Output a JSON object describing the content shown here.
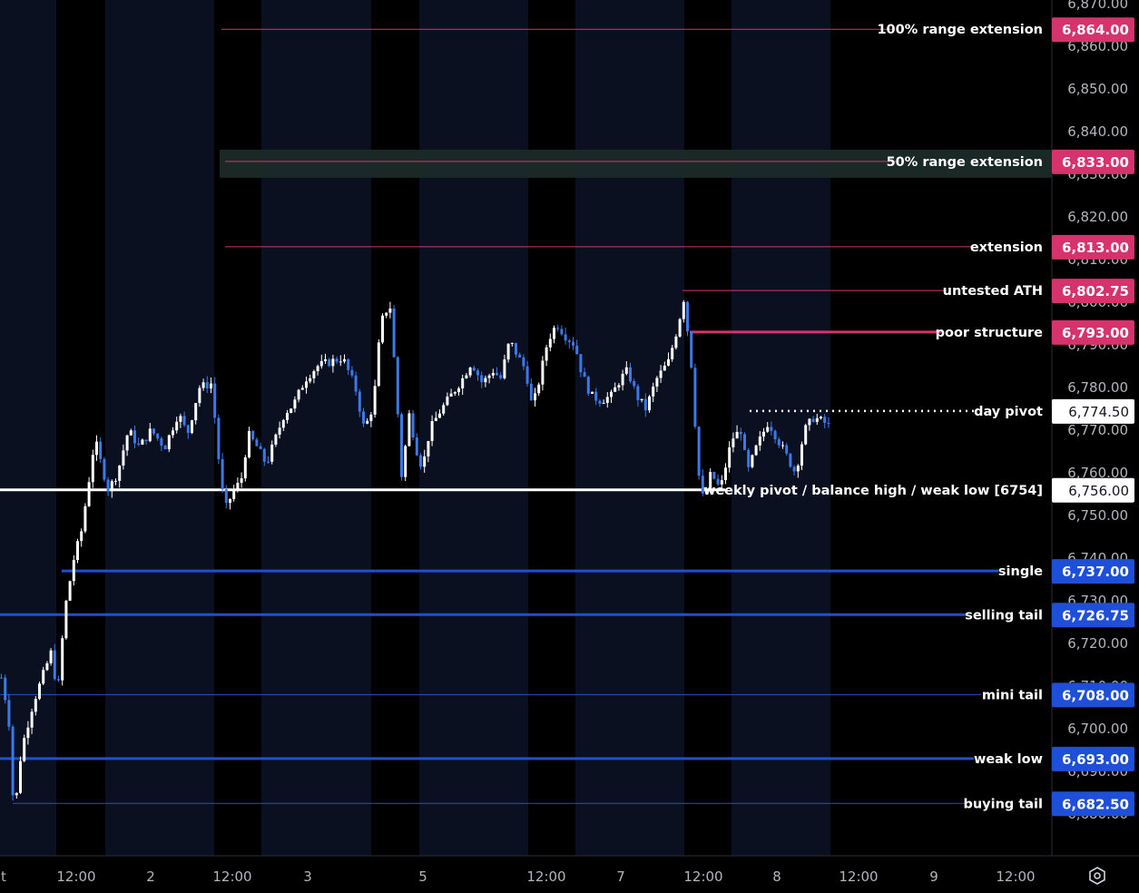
{
  "chart_data": {
    "type": "candlestick",
    "y_axis": {
      "min": 6667,
      "max": 6870,
      "ticks": [
        6680,
        6690,
        6700,
        6710,
        6720,
        6730,
        6740,
        6750,
        6760,
        6770,
        6780,
        6790,
        6800,
        6810,
        6820,
        6830,
        6840,
        6850,
        6860,
        6870
      ],
      "tick_labels": [
        "6,680.00",
        "6,690.00",
        "6,700.00",
        "6,710.00",
        "6,720.00",
        "6,730.00",
        "6,740.00",
        "6,750.00",
        "6,760.00",
        "6,770.00",
        "6,780.00",
        "6,790.00",
        "6,800.00",
        "6,810.00",
        "6,820.00",
        "6,830.00",
        "6,840.00",
        "6,850.00",
        "6,860.00",
        "6,870.00"
      ]
    },
    "x_axis": {
      "labels": [
        "t",
        "12:00",
        "2",
        "12:00",
        "3",
        "5",
        "12:00",
        "7",
        "12:00",
        "8",
        "12:00",
        "9",
        "12:00"
      ]
    },
    "levels": [
      {
        "label": "100% range extension",
        "price": 6864.0,
        "price_label": "6,864.00",
        "color": "#d6336c",
        "style": "thin"
      },
      {
        "label": "50% range extension",
        "price": 6833.0,
        "price_label": "6,833.00",
        "color": "#d6336c",
        "style": "zone"
      },
      {
        "label": "extension",
        "price": 6813.0,
        "price_label": "6,813.00",
        "color": "#d6336c",
        "style": "thin"
      },
      {
        "label": "untested ATH",
        "price": 6802.75,
        "price_label": "6,802.75",
        "color": "#d6336c",
        "style": "thin"
      },
      {
        "label": "poor structure",
        "price": 6793.0,
        "price_label": "6,793.00",
        "color": "#d6336c",
        "style": "thick"
      },
      {
        "label": "day pivot",
        "price": 6774.5,
        "price_label": "6,774.50",
        "color": "#ffffff",
        "style": "dotted"
      },
      {
        "label": "weekly pivot / balance high / weak low [6754]",
        "price": 6756.0,
        "price_label": "6,756.00",
        "color": "#ffffff",
        "style": "thick"
      },
      {
        "label": "single",
        "price": 6737.0,
        "price_label": "6,737.00",
        "color": "#1e4fd8",
        "style": "thick"
      },
      {
        "label": "selling tail",
        "price": 6726.75,
        "price_label": "6,726.75",
        "color": "#1e4fd8",
        "style": "thick"
      },
      {
        "label": "mini tail",
        "price": 6708.0,
        "price_label": "6,708.00",
        "color": "#1e4fd8",
        "style": "thin"
      },
      {
        "label": "weak low",
        "price": 6693.0,
        "price_label": "6,693.00",
        "color": "#1e4fd8",
        "style": "thick"
      },
      {
        "label": "buying tail",
        "price": 6682.5,
        "price_label": "6,682.50",
        "color": "#1e4fd8",
        "style": "thin"
      }
    ],
    "series_path": [
      [
        6712,
        0
      ],
      [
        6703,
        8
      ],
      [
        6679,
        14
      ],
      [
        6695,
        22
      ],
      [
        6706,
        35
      ],
      [
        6712,
        45
      ],
      [
        6718,
        55
      ],
      [
        6708,
        62
      ],
      [
        6728,
        70
      ],
      [
        6740,
        80
      ],
      [
        6746,
        88
      ],
      [
        6756,
        95
      ],
      [
        6768,
        103
      ],
      [
        6762,
        110
      ],
      [
        6756,
        118
      ],
      [
        6760,
        128
      ],
      [
        6770,
        140
      ],
      [
        6766,
        152
      ],
      [
        6770,
        165
      ],
      [
        6766,
        180
      ],
      [
        6774,
        195
      ],
      [
        6769,
        205
      ],
      [
        6780,
        218
      ],
      [
        6781,
        232
      ],
      [
        6766,
        238
      ],
      [
        6751,
        246
      ],
      [
        6756,
        256
      ],
      [
        6758,
        264
      ],
      [
        6769,
        272
      ],
      [
        6766,
        282
      ],
      [
        6762,
        292
      ],
      [
        6768,
        302
      ],
      [
        6774,
        312
      ],
      [
        6776,
        322
      ],
      [
        6782,
        335
      ],
      [
        6785,
        348
      ],
      [
        6786,
        362
      ],
      [
        6787,
        376
      ],
      [
        6780,
        390
      ],
      [
        6770,
        400
      ],
      [
        6776,
        410
      ],
      [
        6795,
        418
      ],
      [
        6800,
        428
      ],
      [
        6780,
        435
      ],
      [
        6756,
        442
      ],
      [
        6775,
        448
      ],
      [
        6765,
        458
      ],
      [
        6761,
        464
      ],
      [
        6770,
        472
      ],
      [
        6774,
        482
      ],
      [
        6778,
        495
      ],
      [
        6782,
        508
      ],
      [
        6786,
        518
      ],
      [
        6781,
        530
      ],
      [
        6784,
        542
      ],
      [
        6782,
        550
      ],
      [
        6791,
        560
      ],
      [
        6787,
        570
      ],
      [
        6784,
        578
      ],
      [
        6775,
        585
      ],
      [
        6782,
        593
      ],
      [
        6791,
        602
      ],
      [
        6795,
        612
      ],
      [
        6792,
        622
      ],
      [
        6790,
        632
      ],
      [
        6783,
        640
      ],
      [
        6778,
        650
      ],
      [
        6777,
        660
      ],
      [
        6778,
        672
      ],
      [
        6782,
        682
      ],
      [
        6784,
        690
      ],
      [
        6778,
        700
      ],
      [
        6775,
        710
      ],
      [
        6782,
        722
      ],
      [
        6786,
        735
      ],
      [
        6794,
        745
      ],
      [
        6801,
        752
      ],
      [
        6786,
        760
      ],
      [
        6760,
        768
      ],
      [
        6753,
        774
      ],
      [
        6760,
        782
      ],
      [
        6756,
        792
      ],
      [
        6768,
        805
      ],
      [
        6770,
        815
      ],
      [
        6760,
        822
      ],
      [
        6766,
        832
      ],
      [
        6772,
        845
      ],
      [
        6768,
        855
      ],
      [
        6764,
        865
      ],
      [
        6760,
        875
      ],
      [
        6770,
        885
      ],
      [
        6773,
        895
      ],
      [
        6772,
        905
      ],
      [
        6771,
        912
      ]
    ]
  },
  "toolbar": {
    "settings_icon": "settings-hexagon-icon"
  }
}
